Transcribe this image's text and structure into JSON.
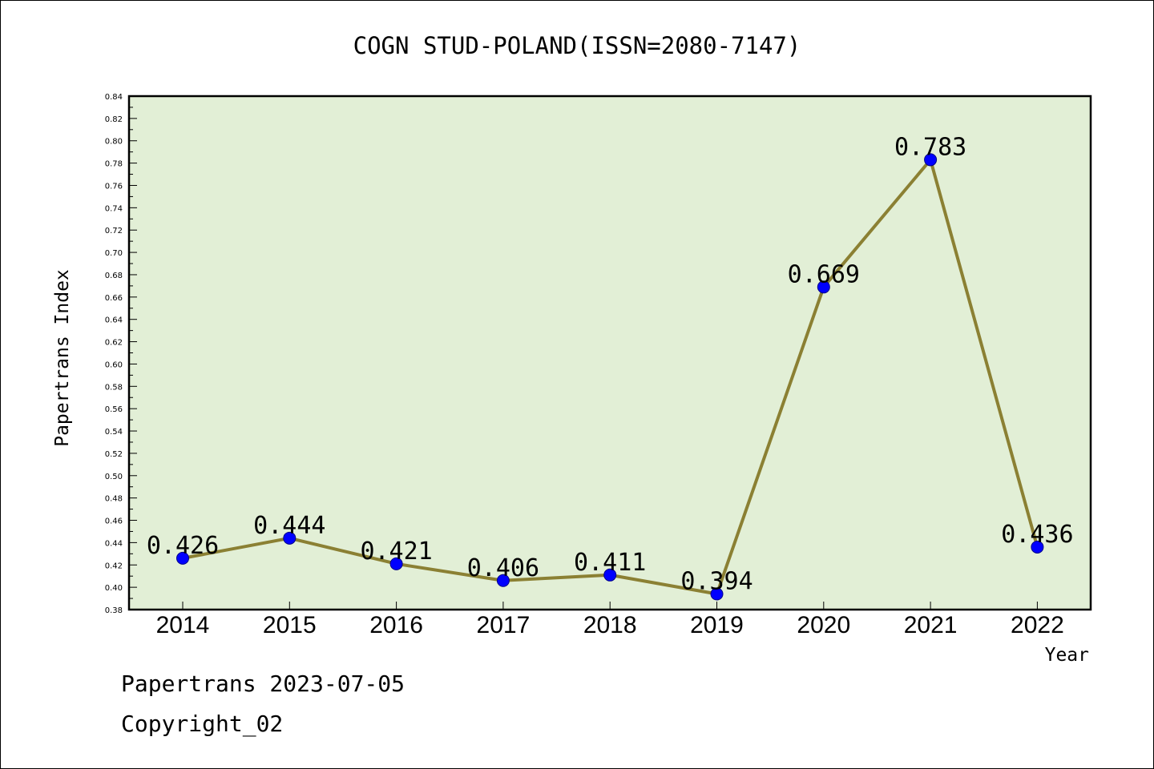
{
  "colors": {
    "plot_background": "#e2efd6",
    "line": "#8b8033",
    "marker": "#0000ff"
  },
  "footer": {
    "line1": "Papertrans 2023-07-05",
    "line2": "Copyright_02"
  },
  "chart_data": {
    "type": "line",
    "title": "COGN STUD-POLAND(ISSN=2080-7147)",
    "xlabel": "Year",
    "ylabel": "Papertrans Index",
    "categories": [
      "2014",
      "2015",
      "2016",
      "2017",
      "2018",
      "2019",
      "2020",
      "2021",
      "2022"
    ],
    "values": [
      0.426,
      0.444,
      0.421,
      0.406,
      0.411,
      0.394,
      0.669,
      0.783,
      0.436
    ],
    "data_labels": [
      "0.426",
      "0.444",
      "0.421",
      "0.406",
      "0.411",
      "0.394",
      "0.669",
      "0.783",
      "0.436"
    ],
    "ylim": [
      0.38,
      0.84
    ],
    "yticks": [
      "0.38",
      "0.40",
      "0.42",
      "0.44",
      "0.46",
      "0.48",
      "0.50",
      "0.52",
      "0.54",
      "0.56",
      "0.58",
      "0.60",
      "0.62",
      "0.64",
      "0.66",
      "0.68",
      "0.70",
      "0.72",
      "0.74",
      "0.76",
      "0.78",
      "0.80",
      "0.82",
      "0.84"
    ],
    "grid": false,
    "legend": "none"
  }
}
